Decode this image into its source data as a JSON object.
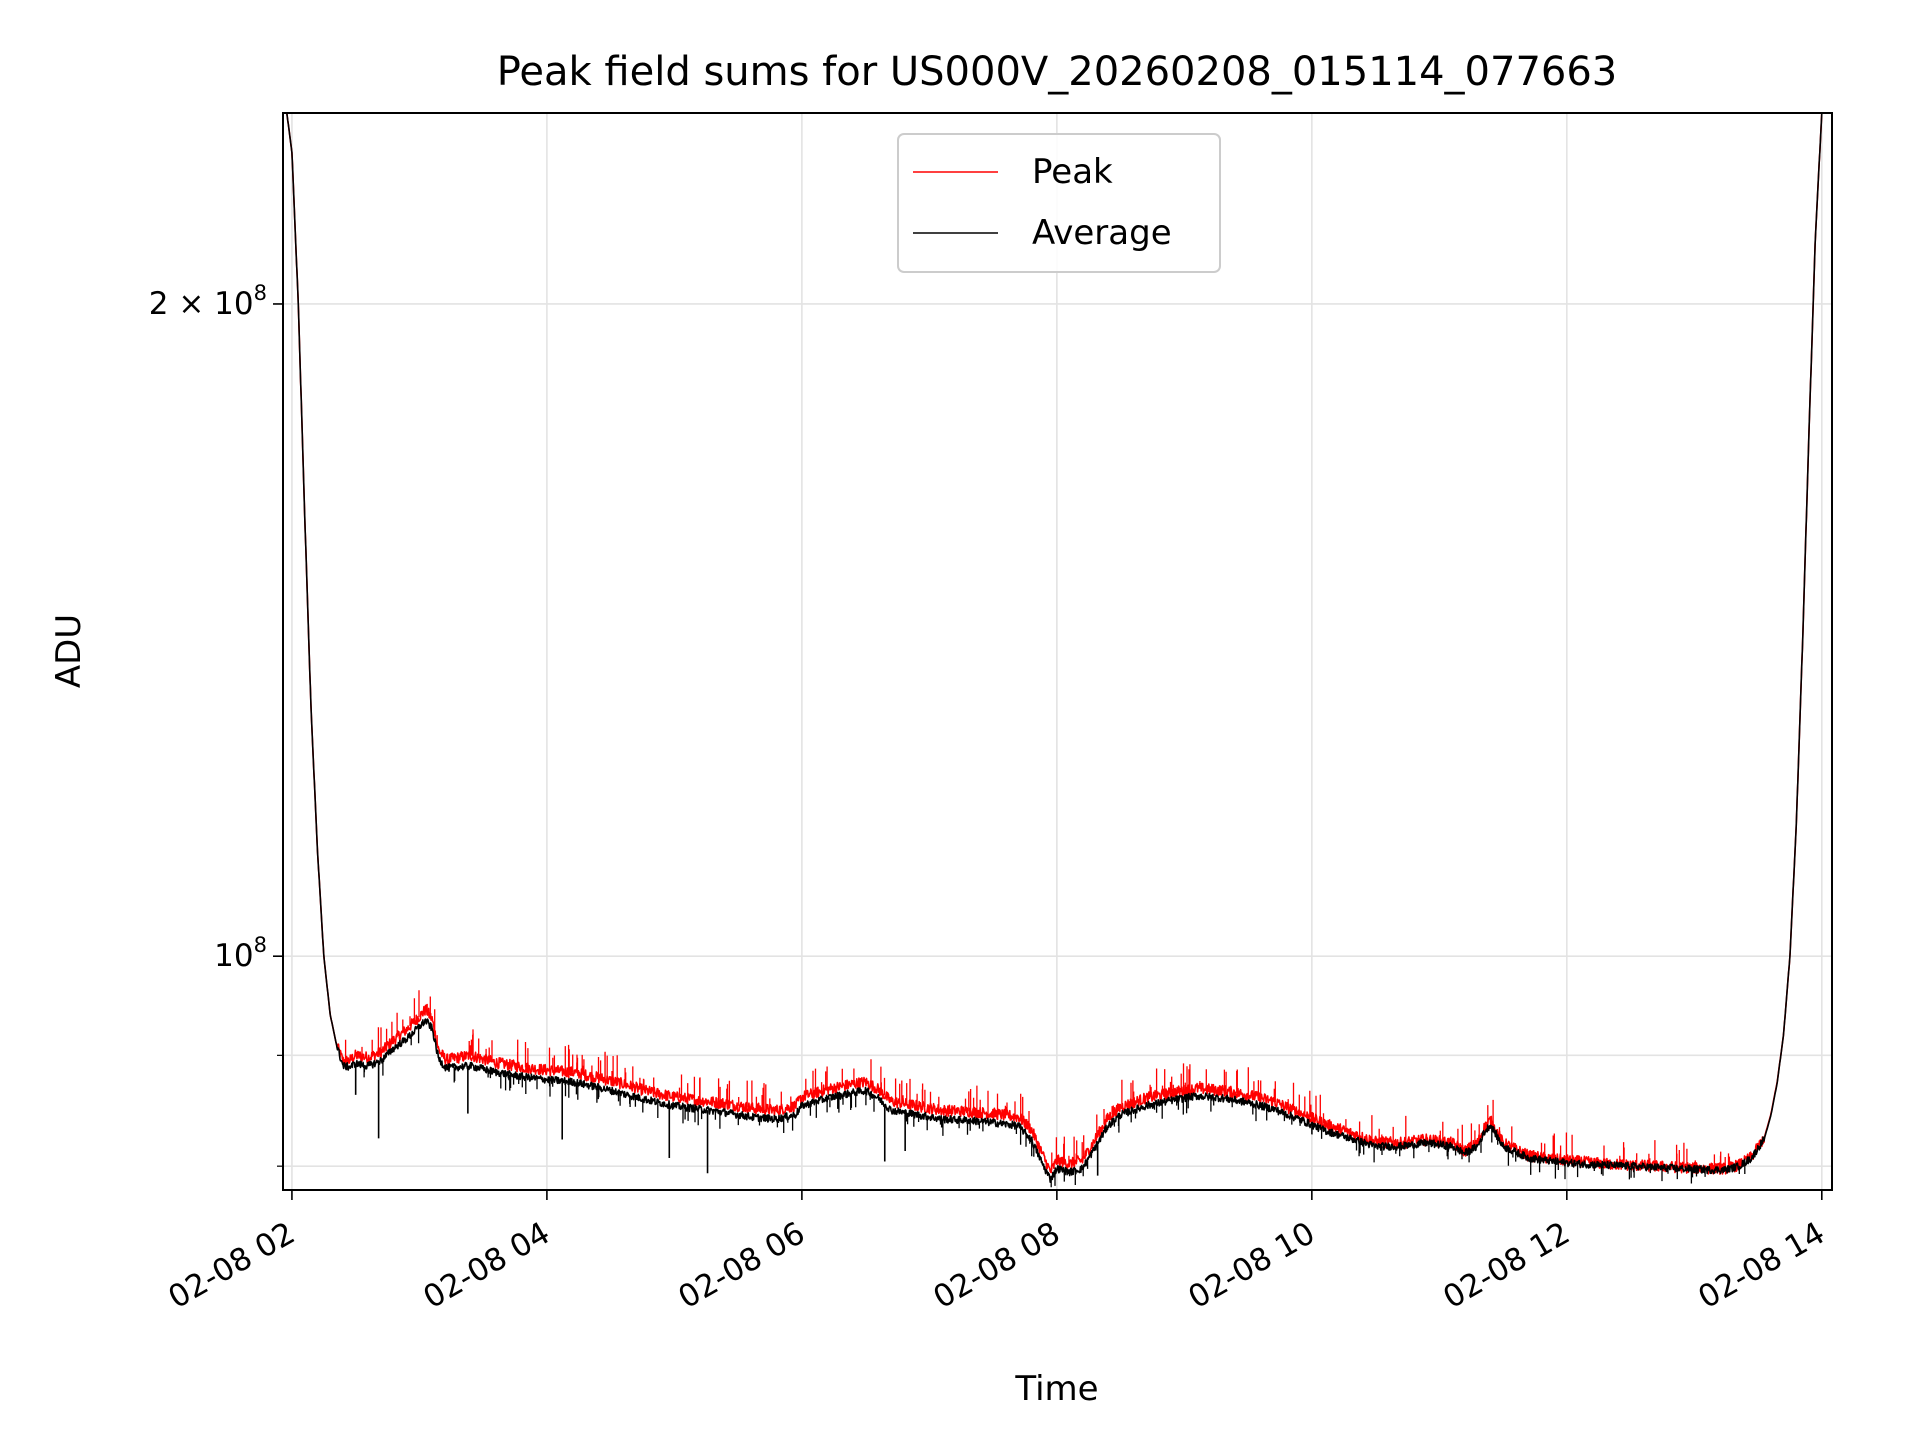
{
  "chart_data": {
    "type": "line",
    "title": "Peak field sums for US000V_20260208_015114_077663",
    "xlabel": "Time",
    "ylabel": "ADU",
    "yscale": "log",
    "xlim": [
      1.93,
      14.08
    ],
    "ylim": [
      78000000,
      245000000
    ],
    "grid": true,
    "legend_location": "upper center",
    "x_ticks": [
      {
        "value": 2,
        "label": "02-08 02"
      },
      {
        "value": 4,
        "label": "02-08 04"
      },
      {
        "value": 6,
        "label": "02-08 06"
      },
      {
        "value": 8,
        "label": "02-08 08"
      },
      {
        "value": 10,
        "label": "02-08 10"
      },
      {
        "value": 12,
        "label": "02-08 12"
      },
      {
        "value": 14,
        "label": "02-08 14"
      }
    ],
    "y_major_ticks": [
      {
        "value": 100000000,
        "base": "10",
        "exp": "8"
      },
      {
        "value": 200000000,
        "base": "2 × 10",
        "exp": "8"
      }
    ],
    "y_minor_ticks": [
      80000000,
      90000000
    ],
    "series": [
      {
        "name": "Peak",
        "color": "#ff0000",
        "x": [
          1.96,
          2.0,
          2.05,
          2.1,
          2.15,
          2.2,
          2.25,
          2.3,
          2.35,
          2.4,
          2.45,
          2.5,
          2.6,
          2.7,
          2.8,
          2.9,
          3.0,
          3.05,
          3.1,
          3.15,
          3.2,
          3.22,
          3.4,
          3.6,
          3.8,
          4.0,
          4.2,
          4.4,
          4.6,
          4.8,
          5.0,
          5.2,
          5.4,
          5.6,
          5.8,
          5.95,
          6.0,
          6.2,
          6.4,
          6.5,
          6.6,
          6.7,
          6.9,
          7.1,
          7.3,
          7.5,
          7.7,
          7.8,
          7.9,
          7.95,
          8.0,
          8.1,
          8.2,
          8.3,
          8.4,
          8.5,
          8.7,
          8.9,
          9.1,
          9.3,
          9.5,
          9.7,
          9.9,
          10.1,
          10.3,
          10.5,
          10.7,
          10.9,
          11.1,
          11.2,
          11.3,
          11.35,
          11.4,
          11.5,
          11.7,
          11.9,
          12.1,
          12.3,
          12.5,
          12.7,
          12.9,
          13.1,
          13.25,
          13.35,
          13.45,
          13.55,
          13.6,
          13.65,
          13.7,
          13.75,
          13.8,
          13.85,
          13.9,
          13.95,
          14.0
        ],
        "y": [
          245000000,
          235000000,
          200000000,
          160000000,
          130000000,
          112000000,
          100000000,
          94000000,
          91000000,
          89500000,
          89500000,
          90000000,
          89800000,
          90300000,
          91500000,
          92500000,
          93800000,
          94500000,
          93500000,
          90500000,
          89700000,
          89600000,
          90000000,
          89300000,
          88900000,
          88600000,
          88400000,
          87900000,
          87300000,
          86600000,
          86100000,
          85800000,
          85500000,
          85100000,
          84900000,
          85300000,
          86100000,
          86800000,
          87300000,
          87500000,
          86800000,
          85700000,
          85300000,
          84900000,
          84800000,
          84600000,
          84300000,
          83200000,
          80700000,
          79500000,
          80500000,
          80200000,
          80500000,
          82300000,
          84200000,
          85200000,
          86000000,
          86500000,
          86900000,
          86700000,
          86300000,
          85700000,
          84700000,
          83700000,
          82900000,
          82100000,
          82000000,
          82300000,
          82000000,
          81300000,
          82000000,
          83300000,
          84000000,
          82000000,
          80900000,
          80600000,
          80400000,
          80200000,
          80100000,
          80000000,
          79900000,
          79800000,
          79800000,
          80100000,
          80800000,
          82500000,
          84500000,
          87500000,
          92000000,
          100000000,
          115000000,
          140000000,
          175000000,
          215000000,
          245000000
        ]
      },
      {
        "name": "Average",
        "color": "#000000",
        "x": [
          1.96,
          2.0,
          2.05,
          2.1,
          2.15,
          2.2,
          2.25,
          2.3,
          2.35,
          2.4,
          2.45,
          2.5,
          2.6,
          2.7,
          2.8,
          2.9,
          3.0,
          3.05,
          3.1,
          3.15,
          3.2,
          3.22,
          3.4,
          3.6,
          3.8,
          4.0,
          4.2,
          4.4,
          4.6,
          4.8,
          5.0,
          5.2,
          5.4,
          5.6,
          5.8,
          5.95,
          6.0,
          6.2,
          6.4,
          6.5,
          6.6,
          6.7,
          6.9,
          7.1,
          7.3,
          7.5,
          7.7,
          7.8,
          7.9,
          7.95,
          8.0,
          8.1,
          8.2,
          8.3,
          8.4,
          8.5,
          8.7,
          8.9,
          9.1,
          9.3,
          9.5,
          9.7,
          9.9,
          10.1,
          10.3,
          10.5,
          10.7,
          10.9,
          11.1,
          11.2,
          11.3,
          11.35,
          11.4,
          11.5,
          11.7,
          11.9,
          12.1,
          12.3,
          12.5,
          12.7,
          12.9,
          13.1,
          13.25,
          13.35,
          13.45,
          13.55,
          13.6,
          13.65,
          13.7,
          13.75,
          13.8,
          13.85,
          13.9,
          13.95,
          14.0
        ],
        "y": [
          245000000,
          235000000,
          200000000,
          160000000,
          130000000,
          112000000,
          100000000,
          94000000,
          91000000,
          89000000,
          88900000,
          89200000,
          89000000,
          89500000,
          90700000,
          91600000,
          92800000,
          93400000,
          92600000,
          89700000,
          88900000,
          88800000,
          89000000,
          88400000,
          88000000,
          87700000,
          87500000,
          87000000,
          86400000,
          85800000,
          85300000,
          85000000,
          84700000,
          84300000,
          84100000,
          84500000,
          85300000,
          86000000,
          86500000,
          86700000,
          86000000,
          84900000,
          84500000,
          84100000,
          84000000,
          83800000,
          83500000,
          82300000,
          79900000,
          78900000,
          79800000,
          79500000,
          79800000,
          81600000,
          83500000,
          84500000,
          85300000,
          85800000,
          86200000,
          86000000,
          85600000,
          85000000,
          84100000,
          83100000,
          82400000,
          81700000,
          81700000,
          82000000,
          81700000,
          81100000,
          81700000,
          82900000,
          83600000,
          81700000,
          80700000,
          80400000,
          80200000,
          80100000,
          80000000,
          79900000,
          79800000,
          79700000,
          79700000,
          80000000,
          80700000,
          82400000,
          84400000,
          87400000,
          92000000,
          100000000,
          115000000,
          140000000,
          175000000,
          215000000,
          245000000
        ]
      }
    ],
    "average_dips": [
      {
        "x": 2.5,
        "y": 86300000
      },
      {
        "x": 2.68,
        "y": 82400000
      },
      {
        "x": 3.38,
        "y": 84600000
      },
      {
        "x": 4.12,
        "y": 82300000
      },
      {
        "x": 4.96,
        "y": 80700000
      },
      {
        "x": 5.26,
        "y": 79400000
      },
      {
        "x": 6.65,
        "y": 80400000
      },
      {
        "x": 6.81,
        "y": 81300000
      },
      {
        "x": 8.32,
        "y": 79200000
      }
    ],
    "peak_spike_count": 220,
    "average_spike_count": 160
  }
}
